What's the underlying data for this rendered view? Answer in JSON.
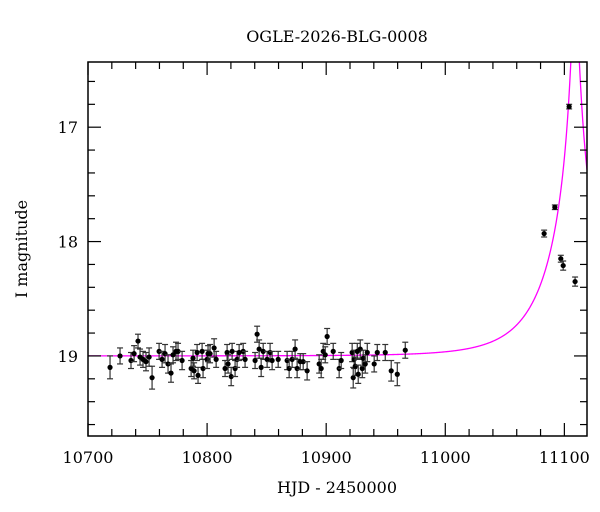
{
  "chart_data": {
    "type": "scatter",
    "title": "OGLE-2026-BLG-0008",
    "xlabel": "HJD - 2450000",
    "ylabel": "I magnitude",
    "xlim": [
      10700,
      11119
    ],
    "ylim": [
      19.7,
      16.43
    ],
    "y_inverted": true,
    "x_major_ticks": [
      10700,
      10800,
      10900,
      11000,
      11100
    ],
    "x_tick_labels": [
      "10700",
      "10800",
      "10900",
      "11000",
      "11100"
    ],
    "x_minor_step": 20,
    "y_major_ticks": [
      17,
      18,
      19
    ],
    "y_tick_labels": [
      "17",
      "18",
      "19"
    ],
    "y_minor_step": 0.2,
    "grid": false,
    "colors": {
      "points": "#000000",
      "model": "#ff00ff"
    },
    "points": [
      [
        10718.5,
        19.1,
        0.1
      ],
      [
        10726.9,
        19.0,
        0.07
      ],
      [
        10736.1,
        19.04,
        0.07
      ],
      [
        10738.7,
        18.98,
        0.07
      ],
      [
        10742.0,
        18.87,
        0.06
      ],
      [
        10743.7,
        19.01,
        0.07
      ],
      [
        10746.2,
        19.03,
        0.07
      ],
      [
        10748.7,
        19.05,
        0.08
      ],
      [
        10751.3,
        19.01,
        0.08
      ],
      [
        10753.8,
        19.19,
        0.1
      ],
      [
        10759.7,
        18.96,
        0.07
      ],
      [
        10762.2,
        19.03,
        0.07
      ],
      [
        10764.7,
        18.98,
        0.08
      ],
      [
        10767.2,
        19.07,
        0.08
      ],
      [
        10769.7,
        19.15,
        0.08
      ],
      [
        10771.4,
        18.99,
        0.07
      ],
      [
        10773.9,
        18.96,
        0.08
      ],
      [
        10775.6,
        18.96,
        0.07
      ],
      [
        10779.0,
        19.04,
        0.08
      ],
      [
        10786.6,
        19.11,
        0.07
      ],
      [
        10788.2,
        19.02,
        0.07
      ],
      [
        10789.1,
        19.13,
        0.07
      ],
      [
        10791.6,
        18.97,
        0.07
      ],
      [
        10792.4,
        19.17,
        0.07
      ],
      [
        10795.8,
        18.96,
        0.07
      ],
      [
        10796.6,
        19.11,
        0.08
      ],
      [
        10800.0,
        19.03,
        0.08
      ],
      [
        10800.8,
        18.98,
        0.07
      ],
      [
        10802.5,
        18.98,
        0.08
      ],
      [
        10805.9,
        18.93,
        0.08
      ],
      [
        10807.6,
        19.03,
        0.07
      ],
      [
        10815.1,
        19.11,
        0.07
      ],
      [
        10816.8,
        18.97,
        0.07
      ],
      [
        10817.6,
        19.07,
        0.08
      ],
      [
        10820.2,
        19.18,
        0.08
      ],
      [
        10821.0,
        18.96,
        0.07
      ],
      [
        10823.5,
        19.11,
        0.07
      ],
      [
        10825.2,
        19.03,
        0.07
      ],
      [
        10826.9,
        18.97,
        0.07
      ],
      [
        10830.3,
        18.96,
        0.07
      ],
      [
        10831.9,
        19.03,
        0.07
      ],
      [
        10840.3,
        19.04,
        0.07
      ],
      [
        10842.0,
        18.81,
        0.07
      ],
      [
        10843.7,
        18.94,
        0.08
      ],
      [
        10845.4,
        19.1,
        0.08
      ],
      [
        10847.1,
        18.96,
        0.07
      ],
      [
        10850.4,
        19.03,
        0.07
      ],
      [
        10852.9,
        18.97,
        0.08
      ],
      [
        10854.6,
        19.04,
        0.08
      ],
      [
        10859.7,
        19.03,
        0.07
      ],
      [
        10867.2,
        19.04,
        0.08
      ],
      [
        10868.9,
        19.11,
        0.08
      ],
      [
        10871.4,
        19.03,
        0.07
      ],
      [
        10873.9,
        18.94,
        0.08
      ],
      [
        10875.6,
        19.11,
        0.08
      ],
      [
        10878.2,
        19.05,
        0.07
      ],
      [
        10880.7,
        19.05,
        0.07
      ],
      [
        10884.0,
        19.13,
        0.08
      ],
      [
        10894.1,
        19.07,
        0.08
      ],
      [
        10895.8,
        19.11,
        0.08
      ],
      [
        10897.5,
        18.96,
        0.07
      ],
      [
        10899.2,
        18.99,
        0.07
      ],
      [
        10900.8,
        18.83,
        0.07
      ],
      [
        10905.9,
        18.96,
        0.07
      ],
      [
        10910.9,
        19.11,
        0.08
      ],
      [
        10912.6,
        19.04,
        0.07
      ],
      [
        10921.8,
        18.97,
        0.08
      ],
      [
        10922.7,
        19.19,
        0.09
      ],
      [
        10923.5,
        19.03,
        0.08
      ],
      [
        10924.4,
        19.09,
        0.08
      ],
      [
        10926.1,
        18.96,
        0.07
      ],
      [
        10926.9,
        19.16,
        0.08
      ],
      [
        10928.6,
        18.94,
        0.08
      ],
      [
        10930.3,
        19.11,
        0.08
      ],
      [
        10931.1,
        19.02,
        0.07
      ],
      [
        10932.8,
        19.07,
        0.08
      ],
      [
        10934.5,
        18.97,
        0.08
      ],
      [
        10940.3,
        19.07,
        0.07
      ],
      [
        10942.9,
        18.97,
        0.07
      ],
      [
        10949.6,
        18.97,
        0.07
      ],
      [
        10954.6,
        19.13,
        0.09
      ],
      [
        10959.7,
        19.16,
        0.1
      ],
      [
        10966.4,
        18.95,
        0.07
      ],
      [
        11083.0,
        17.93,
        0.03
      ],
      [
        11092.0,
        17.7,
        0.02
      ],
      [
        11097.0,
        18.15,
        0.03
      ],
      [
        11099.0,
        18.21,
        0.04
      ],
      [
        11104.0,
        16.82,
        0.02
      ],
      [
        11109.0,
        18.35,
        0.04
      ]
    ],
    "model": {
      "type": "point-lens",
      "baseline_mag": 19.0,
      "t0": 11109,
      "tE": 45,
      "u0": 0.05
    }
  }
}
